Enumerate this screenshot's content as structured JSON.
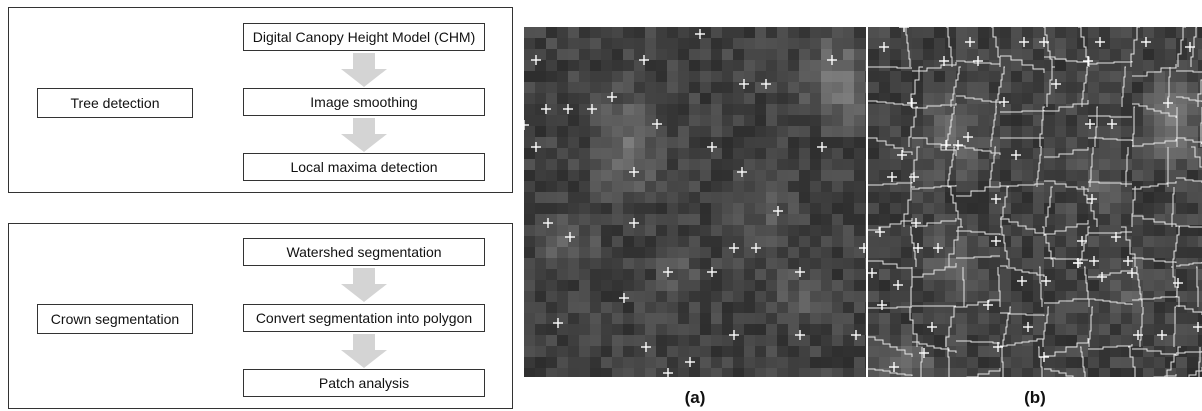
{
  "flowchart": {
    "tree_detection": {
      "label": "Tree detection",
      "steps": [
        "Digital Canopy Height Model (CHM)",
        "Image smoothing",
        "Local maxima detection"
      ]
    },
    "crown_segmentation": {
      "label": "Crown segmentation",
      "steps": [
        "Watershed segmentation",
        "Convert segmentation into polygon",
        "Patch analysis"
      ]
    }
  },
  "images": {
    "a": {
      "caption": "(a)"
    },
    "b": {
      "caption": "(b)"
    }
  },
  "colors": {
    "arrow": "#d4d4d4",
    "marker": "#ffffff",
    "boundary": "#e6e6e6"
  }
}
